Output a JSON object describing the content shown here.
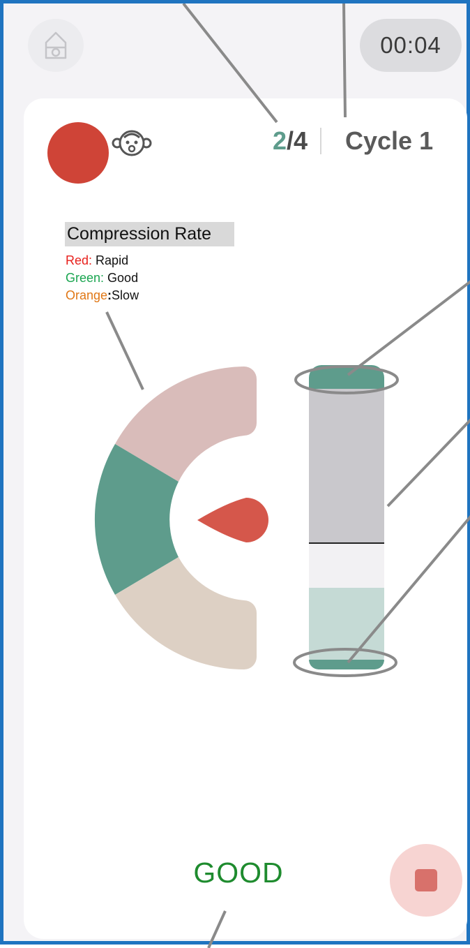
{
  "header": {
    "home_icon": "home-icon",
    "timer": "00:04"
  },
  "status": {
    "indicator_color": "#cf4437",
    "patient_icon": "baby-face-icon",
    "cycle_current": "2",
    "cycle_total": "/4",
    "cycle_label": "Cycle 1"
  },
  "legend": {
    "title": "Compression Rate",
    "items": [
      {
        "key": "Red:",
        "value": "Rapid",
        "color": "#e8201c"
      },
      {
        "key": "Green:",
        "value": "Good",
        "color": "#1aa550"
      },
      {
        "key": "Orange",
        "sep": ":",
        "value": "Slow",
        "color": "#e07715"
      }
    ]
  },
  "rate_gauge": {
    "zones": [
      "rapid",
      "good",
      "slow"
    ],
    "colors": {
      "rapid": "#d9bcba",
      "good": "#5e9c8c",
      "slow": "#ddd0c4",
      "needle": "#d5574b"
    }
  },
  "depth_bar": {
    "colors": {
      "top_cap": "#5e9c8c",
      "upper": "#c9c8cc",
      "middle": "#f2f1f3",
      "lower": "#c5dad5",
      "bottom_cap": "#5e9c8c",
      "line": "#222222"
    }
  },
  "feedback": {
    "text": "GOOD",
    "color": "#1e8b2e"
  },
  "controls": {
    "stop_icon": "stop-icon"
  }
}
